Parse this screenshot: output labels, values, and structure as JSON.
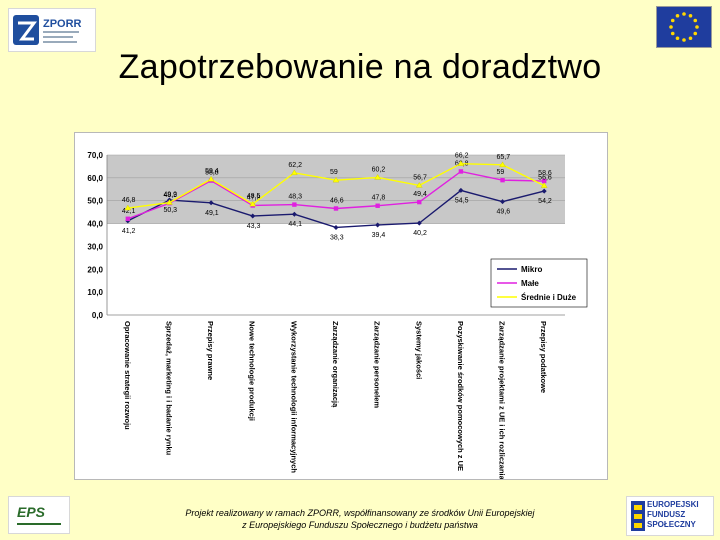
{
  "header": {
    "title": "Zapotrzebowanie na doradztwo"
  },
  "logos": {
    "zporr": {
      "text": "ZPORR",
      "colors": {
        "blue": "#1f4e9e",
        "bg": "#ffffff"
      }
    },
    "eu_flag": {
      "colors": {
        "field": "#1f3d9e",
        "stars": "#ffd700"
      }
    },
    "eps": {
      "text": "EPS"
    },
    "fund": {
      "text": "EUROPEJSKI FUNDUSZ SPOŁECZNY"
    }
  },
  "footer": {
    "line1": "Projekt realizowany w ramach ZPORR, współfinansowany ze środków Unii Europejskiej",
    "line2": "z Europejskiego Funduszu Społecznego i budżetu państwa"
  },
  "chart_data": {
    "type": "line",
    "categories": [
      "Opracowanie strategii rozwoju",
      "Sprzedaż, marketing i i badanie rynku",
      "Przepisy prawne",
      "Nowe technologie produkcji",
      "Wykorzystanie technologii informacyjnych",
      "Zarządzanie organizacją",
      "Zarządzanie personelem",
      "Systemy jakości",
      "Pozyskiwanie środków pomocowych z UE",
      "Zarządzanie projektami z UE i ich rozliczania",
      "Przepisy podatkowe"
    ],
    "series": [
      {
        "name": "Mikro",
        "values": [
          41.2,
          50.3,
          49.1,
          43.3,
          44.1,
          38.3,
          39.4,
          40.2,
          54.5,
          49.6,
          54.2
        ],
        "color": "#1a1a6e"
      },
      {
        "name": "Małe",
        "values": [
          42.1,
          48.9,
          58.8,
          47.9,
          48.3,
          46.6,
          47.8,
          49.4,
          62.8,
          59.0,
          58.6
        ],
        "color": "#e020e0"
      },
      {
        "name": "Średnie i Duże",
        "values": [
          46.8,
          49.2,
          59.4,
          48.5,
          62.2,
          59.0,
          60.2,
          56.7,
          66.2,
          65.7,
          56.6
        ],
        "color": "#ffff00"
      }
    ],
    "ylim": [
      0,
      70
    ],
    "yticks": [
      "0,0",
      "10,0",
      "20,0",
      "30,0",
      "40,0",
      "50,0",
      "60,0",
      "70,0"
    ],
    "legend_position": "right",
    "shaded_band": [
      40,
      70
    ],
    "colors": {
      "plot_band": "#c8c8c8",
      "band_bg": "#ffffff"
    }
  }
}
